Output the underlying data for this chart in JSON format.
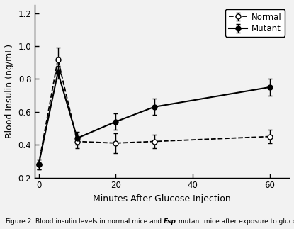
{
  "normal_x": [
    0,
    5,
    10,
    20,
    30,
    60
  ],
  "normal_y": [
    0.28,
    0.92,
    0.42,
    0.41,
    0.42,
    0.45
  ],
  "normal_yerr": [
    0.03,
    0.07,
    0.04,
    0.06,
    0.04,
    0.04
  ],
  "mutant_x": [
    0,
    5,
    10,
    20,
    30,
    60
  ],
  "mutant_y": [
    0.28,
    0.84,
    0.44,
    0.54,
    0.63,
    0.75
  ],
  "mutant_yerr": [
    0.03,
    0.04,
    0.04,
    0.05,
    0.05,
    0.05
  ],
  "xlabel": "Minutes After Glucose Injection",
  "ylabel": "Blood Insulin (ng/mL)",
  "xlim": [
    -1,
    65
  ],
  "ylim": [
    0.2,
    1.25
  ],
  "yticks": [
    0.2,
    0.4,
    0.6,
    0.8,
    1.0,
    1.2
  ],
  "xticks": [
    0,
    20,
    40,
    60
  ],
  "legend_normal": "Normal",
  "legend_mutant": "Mutant",
  "caption_before_italic": "Figure 2: Blood insulin levels in normal mice and ",
  "caption_italic": "Esp",
  "caption_after_italic": " mutant mice after exposure to glucose",
  "bg_color": "#f2f2f2",
  "ax_bg_color": "#f2f2f2"
}
